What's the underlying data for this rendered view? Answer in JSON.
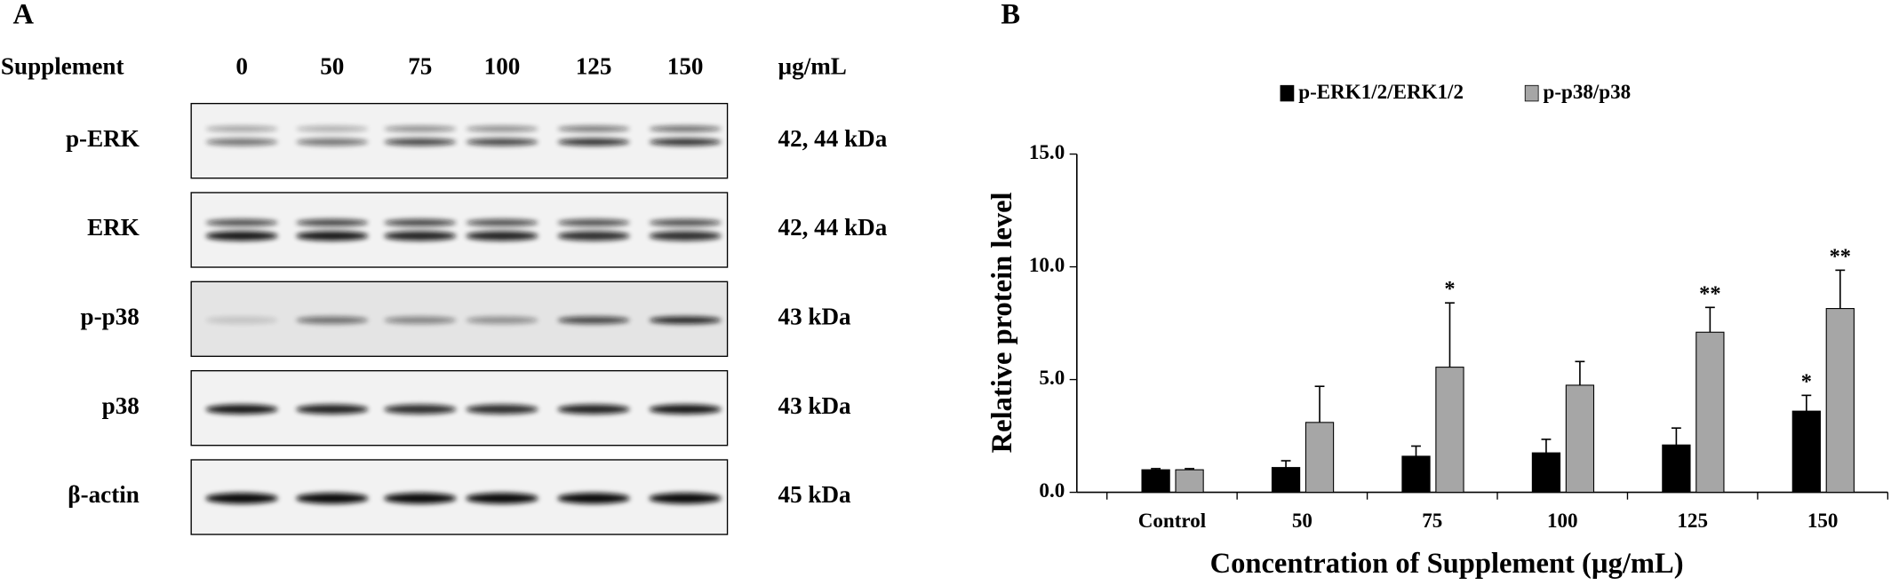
{
  "panel_a": {
    "label": "A",
    "header": "Supplement",
    "lanes": [
      "0",
      "50",
      "75",
      "100",
      "125",
      "150"
    ],
    "unit": "µg/mL",
    "rows": [
      {
        "name": "p-ERK",
        "size": "42, 44 kDa"
      },
      {
        "name": "ERK",
        "size": "42, 44 kDa"
      },
      {
        "name": "p-p38",
        "size": "43 kDa"
      },
      {
        "name": "p38",
        "size": "43 kDa"
      },
      {
        "name": "β-actin",
        "size": "45 kDa"
      }
    ]
  },
  "chart_data": {
    "type": "bar",
    "panel_label": "B",
    "xlabel": "Concentration of Supplement (µg/mL)",
    "ylabel": "Relative protein level",
    "categories": [
      "Control",
      "50",
      "75",
      "100",
      "125",
      "150"
    ],
    "series": [
      {
        "name": "p-ERK1/2/ERK1/2",
        "color": "#000000",
        "values": [
          1.0,
          1.1,
          1.6,
          1.75,
          2.1,
          3.6
        ],
        "errors": [
          0.05,
          0.3,
          0.45,
          0.6,
          0.75,
          0.7
        ],
        "significance": [
          null,
          null,
          null,
          null,
          null,
          "*"
        ]
      },
      {
        "name": "p-p38/p38",
        "color": "#a6a6a6",
        "values": [
          1.0,
          3.1,
          5.55,
          4.75,
          7.1,
          8.15
        ],
        "errors": [
          0.05,
          1.6,
          2.85,
          1.05,
          1.1,
          1.7
        ],
        "significance": [
          null,
          null,
          "*",
          null,
          "**",
          "**"
        ]
      }
    ],
    "ylim": [
      0,
      15
    ],
    "yticks": [
      {
        "value": 0,
        "label": "0.0"
      },
      {
        "value": 5,
        "label": "5.0"
      },
      {
        "value": 10,
        "label": "10.0"
      },
      {
        "value": 15,
        "label": "15.0"
      }
    ],
    "legend": "top-center",
    "grid": false
  }
}
